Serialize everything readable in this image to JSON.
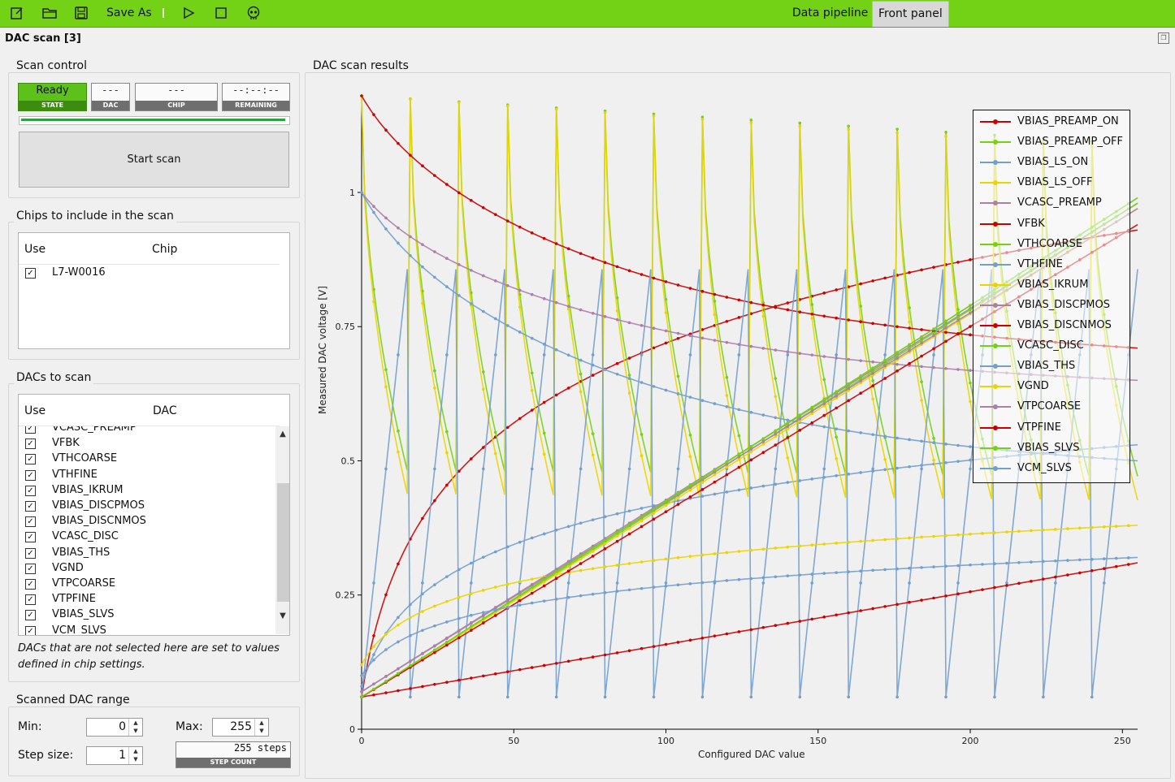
{
  "toolbar": {
    "save_as_label": "Save As",
    "tabs": [
      {
        "label": "Data pipeline",
        "active": false
      },
      {
        "label": "Front panel",
        "active": true
      }
    ],
    "accent": "#73d216"
  },
  "window": {
    "title": "DAC scan [3]"
  },
  "scan_control": {
    "title": "Scan control",
    "state": {
      "value": "Ready",
      "label": "STATE"
    },
    "dac": {
      "value": "---",
      "label": "DAC"
    },
    "chip": {
      "value": "---",
      "label": "CHIP"
    },
    "remaining": {
      "value": "--:--:--",
      "label": "REMAINING"
    },
    "progress": 1.0,
    "start_button": "Start scan"
  },
  "chips": {
    "title": "Chips to include in the scan",
    "col_use": "Use",
    "col_chip": "Chip",
    "rows": [
      {
        "checked": true,
        "name": "L7-W0016"
      }
    ]
  },
  "dacs": {
    "title": "DACs to scan",
    "col_use": "Use",
    "col_dac": "DAC",
    "rows": [
      {
        "checked": true,
        "name": "VCASC_PREAMP"
      },
      {
        "checked": true,
        "name": "VFBK"
      },
      {
        "checked": true,
        "name": "VTHCOARSE"
      },
      {
        "checked": true,
        "name": "VTHFINE"
      },
      {
        "checked": true,
        "name": "VBIAS_IKRUM"
      },
      {
        "checked": true,
        "name": "VBIAS_DISCPMOS"
      },
      {
        "checked": true,
        "name": "VBIAS_DISCNMOS"
      },
      {
        "checked": true,
        "name": "VCASC_DISC"
      },
      {
        "checked": true,
        "name": "VBIAS_THS"
      },
      {
        "checked": true,
        "name": "VGND"
      },
      {
        "checked": true,
        "name": "VTPCOARSE"
      },
      {
        "checked": true,
        "name": "VTPFINE"
      },
      {
        "checked": true,
        "name": "VBIAS_SLVS"
      },
      {
        "checked": true,
        "name": "VCM_SLVS"
      }
    ],
    "note": "DACs that are not selected here are set to values defined in chip settings."
  },
  "range": {
    "title": "Scanned DAC range",
    "min_label": "Min:",
    "min_value": "0",
    "max_label": "Max:",
    "max_value": "255",
    "step_label": "Step size:",
    "step_value": "1",
    "step_count_value": "255 steps",
    "step_count_label": "STEP COUNT"
  },
  "results": {
    "title": "DAC scan results"
  },
  "chart_data": {
    "type": "line",
    "xlabel": "Configured DAC value",
    "ylabel": "Measured DAC voltage [V]",
    "xlim": [
      0,
      255
    ],
    "ylim": [
      0,
      1.18
    ],
    "x_ticks": [
      "0",
      "50",
      "100",
      "150",
      "200",
      "250"
    ],
    "y_ticks": [
      "0",
      "0.25",
      "0.5",
      "0.75",
      "1"
    ],
    "legend_position": "top-right",
    "series": [
      {
        "name": "VBIAS_PREAMP_ON",
        "color": "#cc0000",
        "shape": "log_rise",
        "start": 0.06,
        "end": 0.93
      },
      {
        "name": "VBIAS_PREAMP_OFF",
        "color": "#73d216",
        "shape": "sawtooth16",
        "start": 1.18,
        "end": 0.73
      },
      {
        "name": "VBIAS_LS_ON",
        "color": "#729fcf",
        "shape": "log_rise",
        "start": 0.08,
        "end": 0.53
      },
      {
        "name": "VBIAS_LS_OFF",
        "color": "#edd400",
        "shape": "sawtooth16",
        "start": 1.18,
        "end": 0.68
      },
      {
        "name": "VCASC_PREAMP",
        "color": "#ad7fa8",
        "shape": "linear",
        "start": 0.07,
        "end": 0.98
      },
      {
        "name": "VFBK",
        "color": "#cc0000",
        "shape": "decay",
        "start": 1.18,
        "end": 0.71
      },
      {
        "name": "VTHCOARSE",
        "color": "#73d216",
        "shape": "linear",
        "start": 0.06,
        "end": 0.99
      },
      {
        "name": "VTHFINE",
        "color": "#729fcf",
        "shape": "sawtooth16",
        "start": 0.06,
        "end": 0.91
      },
      {
        "name": "VBIAS_IKRUM",
        "color": "#edd400",
        "shape": "log_rise",
        "start": 0.12,
        "end": 0.38
      },
      {
        "name": "VBIAS_DISCPMOS",
        "color": "#ad7fa8",
        "shape": "decay",
        "start": 1.0,
        "end": 0.65
      },
      {
        "name": "VBIAS_DISCNMOS",
        "color": "#cc0000",
        "shape": "linear",
        "start": 0.06,
        "end": 0.31
      },
      {
        "name": "VCASC_DISC",
        "color": "#73d216",
        "shape": "linear",
        "start": 0.06,
        "end": 0.98
      },
      {
        "name": "VBIAS_THS",
        "color": "#729fcf",
        "shape": "decay",
        "start": 1.0,
        "end": 0.5
      },
      {
        "name": "VGND",
        "color": "#edd400",
        "shape": "linear",
        "start": 0.06,
        "end": 0.97
      },
      {
        "name": "VTPCOARSE",
        "color": "#ad7fa8",
        "shape": "linear",
        "start": 0.07,
        "end": 0.97
      },
      {
        "name": "VTPFINE",
        "color": "#cc0000",
        "shape": "linear",
        "start": 0.06,
        "end": 0.94
      },
      {
        "name": "VBIAS_SLVS",
        "color": "#73d216",
        "shape": "linear",
        "start": 0.06,
        "end": 0.99
      },
      {
        "name": "VCM_SLVS",
        "color": "#729fcf",
        "shape": "log_rise",
        "start": 0.1,
        "end": 0.32
      }
    ]
  }
}
